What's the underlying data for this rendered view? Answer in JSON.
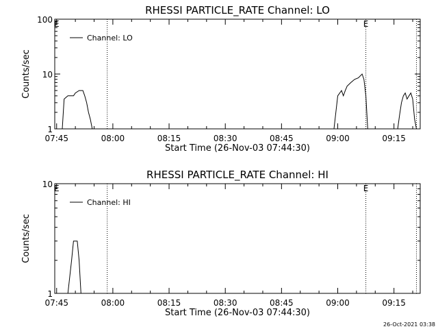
{
  "footer_timestamp": "26-Oct-2021 03:38",
  "chart_data": [
    {
      "type": "line",
      "title": "RHESSI PARTICLE_RATE Channel: LO",
      "xlabel": "Start Time (26-Nov-03 07:44:30)",
      "ylabel": "Counts/sec",
      "yscale": "log",
      "ylim": [
        1,
        100
      ],
      "xlim": [
        "07:44:30",
        "09:22:00"
      ],
      "xticks": [
        "07:45",
        "08:00",
        "08:15",
        "08:30",
        "08:45",
        "09:00",
        "09:15"
      ],
      "yticks": [
        "1",
        "10",
        "100"
      ],
      "grid": false,
      "legend_position": "top-left",
      "vlines": [
        "07:58:30",
        "09:07:30",
        "09:21:00"
      ],
      "markers": [
        {
          "text": "E",
          "time": "07:45"
        },
        {
          "text": "E",
          "time": "09:07:30"
        }
      ],
      "series": [
        {
          "name": "Channel: LO",
          "segments": [
            [
              [
                "07:46:30",
                1
              ],
              [
                "07:47:00",
                3.5
              ],
              [
                "07:48:00",
                4
              ],
              [
                "07:49:30",
                4
              ],
              [
                "07:50:00",
                4.5
              ],
              [
                "07:51:00",
                5
              ],
              [
                "07:52:00",
                5
              ],
              [
                "07:52:30",
                4
              ],
              [
                "07:53:00",
                3
              ],
              [
                "07:53:30",
                2
              ],
              [
                "07:54:00",
                1.5
              ],
              [
                "07:54:30",
                1
              ]
            ],
            [
              [
                "08:59:00",
                1
              ],
              [
                "09:00:00",
                4
              ],
              [
                "09:01:00",
                5
              ],
              [
                "09:01:30",
                4
              ],
              [
                "09:02:00",
                5
              ],
              [
                "09:02:30",
                6
              ],
              [
                "09:03:30",
                7
              ],
              [
                "09:04:30",
                8
              ],
              [
                "09:05:30",
                8.5
              ],
              [
                "09:06:30",
                10
              ],
              [
                "09:07:00",
                8
              ],
              [
                "09:07:30",
                4
              ],
              [
                "09:08:00",
                1
              ]
            ],
            [
              [
                "09:16:00",
                1
              ],
              [
                "09:16:30",
                1.8
              ],
              [
                "09:17:00",
                3
              ],
              [
                "09:17:30",
                4
              ],
              [
                "09:18:00",
                4.5
              ],
              [
                "09:18:30",
                3.5
              ],
              [
                "09:19:00",
                4
              ],
              [
                "09:19:30",
                4.5
              ],
              [
                "09:20:00",
                3.5
              ],
              [
                "09:20:30",
                1.5
              ],
              [
                "09:21:00",
                1
              ]
            ]
          ]
        }
      ]
    },
    {
      "type": "line",
      "title": "RHESSI PARTICLE_RATE Channel: HI",
      "xlabel": "Start Time (26-Nov-03 07:44:30)",
      "ylabel": "Counts/sec",
      "yscale": "log",
      "ylim": [
        1,
        10
      ],
      "xlim": [
        "07:44:30",
        "09:22:00"
      ],
      "xticks": [
        "07:45",
        "08:00",
        "08:15",
        "08:30",
        "08:45",
        "09:00",
        "09:15"
      ],
      "yticks": [
        "1",
        "10"
      ],
      "grid": false,
      "legend_position": "top-left",
      "vlines": [
        "07:58:30",
        "09:07:30",
        "09:21:00"
      ],
      "markers": [
        {
          "text": "E",
          "time": "07:45"
        },
        {
          "text": "E",
          "time": "09:07:30"
        }
      ],
      "series": [
        {
          "name": "Channel: HI",
          "segments": [
            [
              [
                "07:48:00",
                1
              ],
              [
                "07:49:00",
                2
              ],
              [
                "07:49:30",
                3
              ],
              [
                "07:50:30",
                3
              ],
              [
                "07:51:00",
                2
              ],
              [
                "07:51:30",
                1
              ]
            ]
          ]
        }
      ]
    }
  ]
}
